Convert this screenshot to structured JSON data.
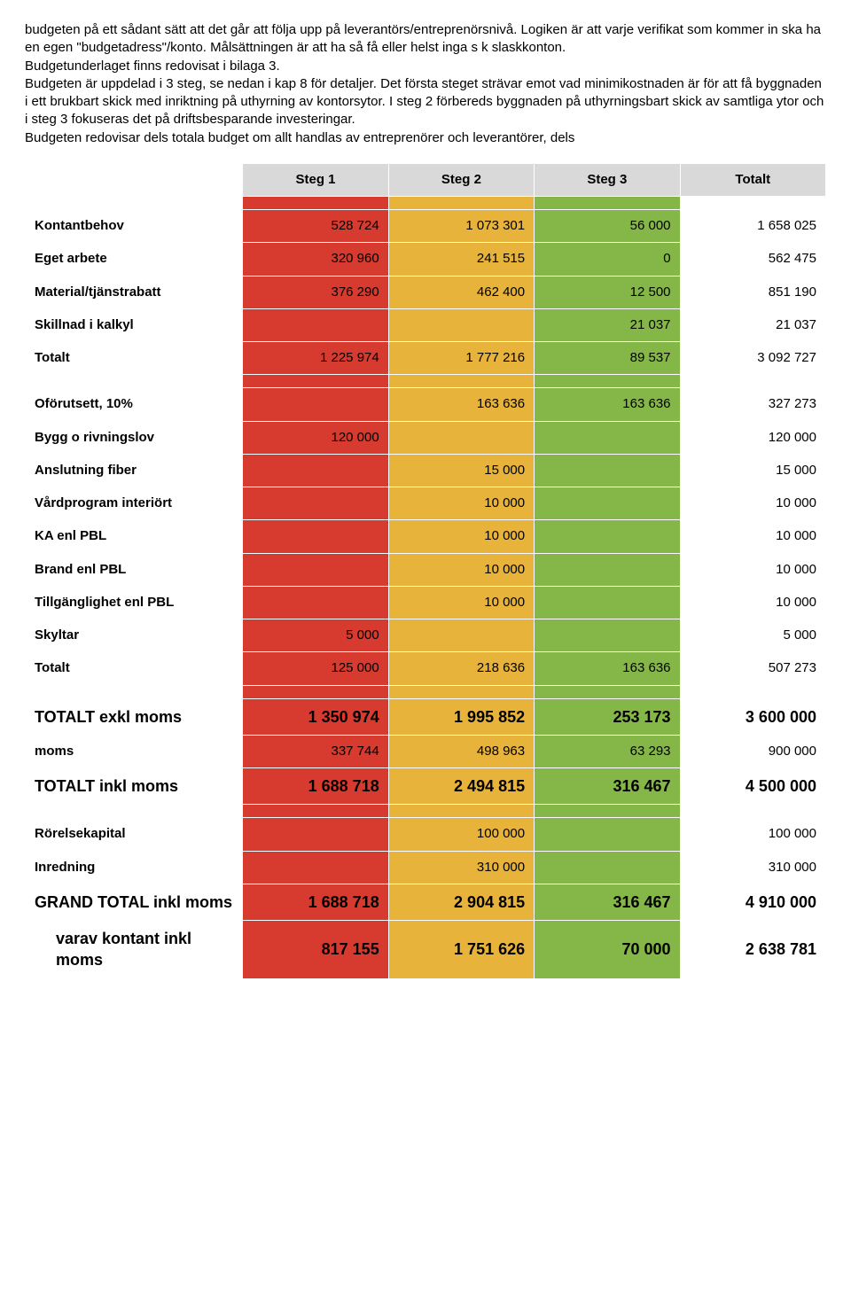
{
  "paragraph": "budgeten på ett sådant sätt att det går att följa upp på leverantörs/entreprenörsnivå. Logiken är att varje verifikat som kommer in ska ha en egen \"budgetadress\"/konto. Målsättningen är att ha så få eller helst inga s k slaskkonton.\nBudgetunderlaget finns redovisat i bilaga 3.\nBudgeten är uppdelad i 3 steg, se nedan i kap 8 för detaljer. Det första steget strävar emot vad minimikostnaden är för att få byggnaden i ett brukbart skick med inriktning på uthyrning av kontorsytor. I steg 2 förbereds byggnaden på uthyrningsbart skick av samtliga ytor och i steg 3 fokuseras det på driftsbesparande investeringar.\nBudgeten redovisar dels totala budget om allt handlas av entreprenörer och leverantörer, dels",
  "colors": {
    "red": "#d73a2e",
    "yellow": "#e8b33a",
    "green": "#84b747",
    "grey": "#d9d9d9",
    "white": "#ffffff"
  },
  "header": {
    "c0": "",
    "c1": "Steg 1",
    "c2": "Steg 2",
    "c3": "Steg 3",
    "c4": "Totalt"
  },
  "rows": [
    {
      "label": "Kontantbehov",
      "s1": "528 724",
      "s2": "1 073 301",
      "s3": "56 000",
      "tot": "1 658 025"
    },
    {
      "label": "Eget arbete",
      "s1": "320 960",
      "s2": "241 515",
      "s3": "0",
      "tot": "562 475"
    },
    {
      "label": "Material/tjänstrabatt",
      "s1": "376 290",
      "s2": "462 400",
      "s3": "12 500",
      "tot": "851 190"
    },
    {
      "label": "Skillnad i kalkyl",
      "s1": "",
      "s2": "",
      "s3": "21 037",
      "tot": "21 037"
    },
    {
      "label": "Totalt",
      "s1": "1 225 974",
      "s2": "1 777 216",
      "s3": "89 537",
      "tot": "3 092 727"
    }
  ],
  "rows2": [
    {
      "label": "Oförutsett, 10%",
      "s1": "",
      "s2": "163 636",
      "s3": "163 636",
      "tot": "327 273"
    },
    {
      "label": "Bygg o rivningslov",
      "s1": "120 000",
      "s2": "",
      "s3": "",
      "tot": "120 000"
    },
    {
      "label": "Anslutning fiber",
      "s1": "",
      "s2": "15 000",
      "s3": "",
      "tot": "15 000"
    },
    {
      "label": "Vårdprogram interiört",
      "s1": "",
      "s2": "10 000",
      "s3": "",
      "tot": "10 000"
    },
    {
      "label": "KA enl PBL",
      "s1": "",
      "s2": "10 000",
      "s3": "",
      "tot": "10 000"
    },
    {
      "label": "Brand enl PBL",
      "s1": "",
      "s2": "10 000",
      "s3": "",
      "tot": "10 000"
    },
    {
      "label": "Tillgänglighet enl PBL",
      "s1": "",
      "s2": "10 000",
      "s3": "",
      "tot": "10 000"
    },
    {
      "label": "Skyltar",
      "s1": "5 000",
      "s2": "",
      "s3": "",
      "tot": "5 000"
    },
    {
      "label": "Totalt",
      "s1": "125 000",
      "s2": "218 636",
      "s3": "163 636",
      "tot": "507 273"
    }
  ],
  "rows3": [
    {
      "label": "TOTALT exkl moms",
      "s1": "1 350 974",
      "s2": "1 995 852",
      "s3": "253 173",
      "tot": "3 600 000",
      "big": true
    },
    {
      "label": "moms",
      "s1": "337 744",
      "s2": "498 963",
      "s3": "63 293",
      "tot": "900 000"
    },
    {
      "label": "TOTALT inkl moms",
      "s1": "1 688 718",
      "s2": "2 494 815",
      "s3": "316 467",
      "tot": "4 500 000",
      "big": true
    }
  ],
  "rows4": [
    {
      "label": "Rörelsekapital",
      "s1": "",
      "s2": "100 000",
      "s3": "",
      "tot": "100 000"
    },
    {
      "label": "Inredning",
      "s1": "",
      "s2": "310 000",
      "s3": "",
      "tot": "310 000"
    },
    {
      "label": "GRAND TOTAL inkl moms",
      "s1": "1 688 718",
      "s2": "2 904 815",
      "s3": "316 467",
      "tot": "4 910 000",
      "big": true
    },
    {
      "label": "varav kontant inkl moms",
      "s1": "817 155",
      "s2": "1 751 626",
      "s3": "70 000",
      "tot": "2 638 781",
      "indent": true,
      "big": true
    }
  ]
}
